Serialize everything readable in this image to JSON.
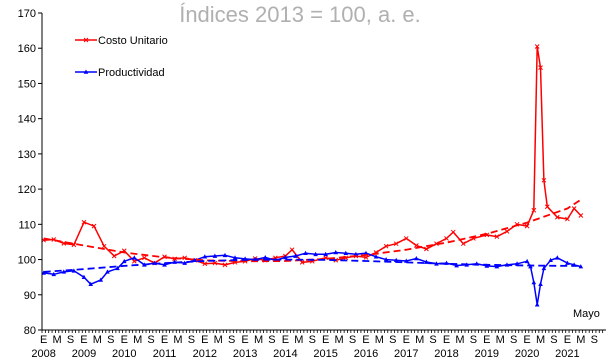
{
  "chart_data": {
    "type": "line",
    "title": "Índices 2013 = 100, a. e.",
    "xlabel": "",
    "ylabel": "",
    "ylim": [
      80,
      170
    ],
    "yticks": [
      80,
      90,
      100,
      110,
      120,
      130,
      140,
      150,
      160,
      170
    ],
    "grid": false,
    "legend_position": "top-left",
    "month_tick_labels": [
      "E",
      "M",
      "S"
    ],
    "year_labels": [
      "2008",
      "2009",
      "2010",
      "2011",
      "2012",
      "2013",
      "2014",
      "2015",
      "2016",
      "2017",
      "2018",
      "2019",
      "2020",
      "2021"
    ],
    "annotation": "Mayo",
    "series": [
      {
        "name": "Costo Unitario",
        "color": "#ff0000",
        "marker": "x",
        "line": "solid",
        "points": [
          [
            "2008-01",
            105.5
          ],
          [
            "2008-04",
            105.7
          ],
          [
            "2008-07",
            104.6
          ],
          [
            "2008-10",
            104.2
          ],
          [
            "2009-01",
            110.6
          ],
          [
            "2009-04",
            109.5
          ],
          [
            "2009-07",
            103.8
          ],
          [
            "2009-10",
            101.0
          ],
          [
            "2010-01",
            102.5
          ],
          [
            "2010-04",
            99.5
          ],
          [
            "2010-07",
            100.5
          ],
          [
            "2010-10",
            99.0
          ],
          [
            "2011-01",
            100.8
          ],
          [
            "2011-04",
            100.2
          ],
          [
            "2011-07",
            100.5
          ],
          [
            "2011-10",
            99.8
          ],
          [
            "2012-01",
            98.8
          ],
          [
            "2012-04",
            99.0
          ],
          [
            "2012-07",
            98.5
          ],
          [
            "2012-10",
            99.2
          ],
          [
            "2013-01",
            99.5
          ],
          [
            "2013-04",
            100.3
          ],
          [
            "2013-07",
            99.8
          ],
          [
            "2013-10",
            100.5
          ],
          [
            "2014-01",
            101.0
          ],
          [
            "2014-03",
            102.8
          ],
          [
            "2014-06",
            99.2
          ],
          [
            "2014-09",
            99.5
          ],
          [
            "2015-01",
            100.5
          ],
          [
            "2015-04",
            99.8
          ],
          [
            "2015-07",
            100.5
          ],
          [
            "2015-10",
            101.0
          ],
          [
            "2016-01",
            100.6
          ],
          [
            "2016-04",
            102.0
          ],
          [
            "2016-07",
            103.8
          ],
          [
            "2016-10",
            104.5
          ],
          [
            "2017-01",
            106.0
          ],
          [
            "2017-04",
            104.0
          ],
          [
            "2017-07",
            103.0
          ],
          [
            "2017-10",
            104.5
          ],
          [
            "2018-01",
            106.0
          ],
          [
            "2018-03",
            107.8
          ],
          [
            "2018-06",
            104.5
          ],
          [
            "2018-09",
            106.0
          ],
          [
            "2019-01",
            107.0
          ],
          [
            "2019-04",
            106.5
          ],
          [
            "2019-07",
            108.0
          ],
          [
            "2019-10",
            110.0
          ],
          [
            "2020-01",
            109.5
          ],
          [
            "2020-03",
            114.0
          ],
          [
            "2020-04",
            160.5
          ],
          [
            "2020-05",
            154.5
          ],
          [
            "2020-06",
            122.5
          ],
          [
            "2020-07",
            115.0
          ],
          [
            "2020-10",
            112.0
          ],
          [
            "2021-01",
            111.5
          ],
          [
            "2021-03",
            114.5
          ],
          [
            "2021-05",
            112.5
          ]
        ]
      },
      {
        "name": "Productividad",
        "color": "#0000ff",
        "marker": "triangle",
        "line": "solid",
        "points": [
          [
            "2008-01",
            96.2
          ],
          [
            "2008-04",
            95.8
          ],
          [
            "2008-07",
            96.5
          ],
          [
            "2008-10",
            96.8
          ],
          [
            "2009-01",
            95.0
          ],
          [
            "2009-03",
            93.0
          ],
          [
            "2009-06",
            94.2
          ],
          [
            "2009-08",
            96.5
          ],
          [
            "2009-11",
            97.5
          ],
          [
            "2010-01",
            99.5
          ],
          [
            "2010-04",
            100.5
          ],
          [
            "2010-07",
            98.5
          ],
          [
            "2010-10",
            99.0
          ],
          [
            "2011-01",
            98.5
          ],
          [
            "2011-04",
            99.3
          ],
          [
            "2011-07",
            99.0
          ],
          [
            "2011-10",
            99.8
          ],
          [
            "2012-01",
            100.8
          ],
          [
            "2012-04",
            101.0
          ],
          [
            "2012-07",
            101.2
          ],
          [
            "2012-10",
            100.5
          ],
          [
            "2013-01",
            100.2
          ],
          [
            "2013-04",
            100.0
          ],
          [
            "2013-07",
            100.6
          ],
          [
            "2013-10",
            99.8
          ],
          [
            "2014-01",
            100.6
          ],
          [
            "2014-04",
            101.0
          ],
          [
            "2014-07",
            101.8
          ],
          [
            "2014-10",
            101.5
          ],
          [
            "2015-01",
            101.5
          ],
          [
            "2015-04",
            102.0
          ],
          [
            "2015-07",
            101.8
          ],
          [
            "2015-10",
            101.5
          ],
          [
            "2016-01",
            101.8
          ],
          [
            "2016-04",
            100.8
          ],
          [
            "2016-07",
            100.0
          ],
          [
            "2016-10",
            99.8
          ],
          [
            "2017-01",
            99.6
          ],
          [
            "2017-04",
            100.3
          ],
          [
            "2017-07",
            99.3
          ],
          [
            "2017-10",
            98.8
          ],
          [
            "2018-01",
            99.0
          ],
          [
            "2018-04",
            98.3
          ],
          [
            "2018-07",
            98.5
          ],
          [
            "2018-10",
            98.8
          ],
          [
            "2019-01",
            98.2
          ],
          [
            "2019-04",
            98.0
          ],
          [
            "2019-07",
            98.5
          ],
          [
            "2019-10",
            98.8
          ],
          [
            "2020-01",
            99.5
          ],
          [
            "2020-02",
            98.0
          ],
          [
            "2020-03",
            93.5
          ],
          [
            "2020-04",
            87.2
          ],
          [
            "2020-05",
            93.0
          ],
          [
            "2020-06",
            97.5
          ],
          [
            "2020-08",
            99.8
          ],
          [
            "2020-10",
            100.5
          ],
          [
            "2021-01",
            99.0
          ],
          [
            "2021-03",
            98.5
          ],
          [
            "2021-05",
            98.0
          ]
        ]
      },
      {
        "name": "",
        "color": "#ff0000",
        "line": "dashed",
        "points": [
          [
            "2008-01",
            106.0
          ],
          [
            "2009-01",
            104.0
          ],
          [
            "2010-01",
            102.0
          ],
          [
            "2011-01",
            100.6
          ],
          [
            "2012-01",
            99.8
          ],
          [
            "2013-01",
            99.5
          ],
          [
            "2014-01",
            99.6
          ],
          [
            "2015-01",
            100.2
          ],
          [
            "2016-01",
            101.3
          ],
          [
            "2017-01",
            102.8
          ],
          [
            "2018-01",
            104.8
          ],
          [
            "2019-01",
            107.3
          ],
          [
            "2020-01",
            110.5
          ],
          [
            "2021-01",
            114.5
          ],
          [
            "2021-05",
            117.0
          ]
        ]
      },
      {
        "name": "",
        "color": "#0000ff",
        "line": "dashed",
        "points": [
          [
            "2008-01",
            96.5
          ],
          [
            "2009-01",
            97.3
          ],
          [
            "2010-01",
            98.2
          ],
          [
            "2011-01",
            99.0
          ],
          [
            "2012-01",
            99.6
          ],
          [
            "2013-01",
            99.9
          ],
          [
            "2014-01",
            100.0
          ],
          [
            "2015-01",
            99.9
          ],
          [
            "2016-01",
            99.6
          ],
          [
            "2017-01",
            99.2
          ],
          [
            "2018-01",
            98.8
          ],
          [
            "2019-01",
            98.5
          ],
          [
            "2020-01",
            98.3
          ],
          [
            "2021-01",
            98.2
          ],
          [
            "2021-05",
            98.2
          ]
        ]
      }
    ]
  }
}
